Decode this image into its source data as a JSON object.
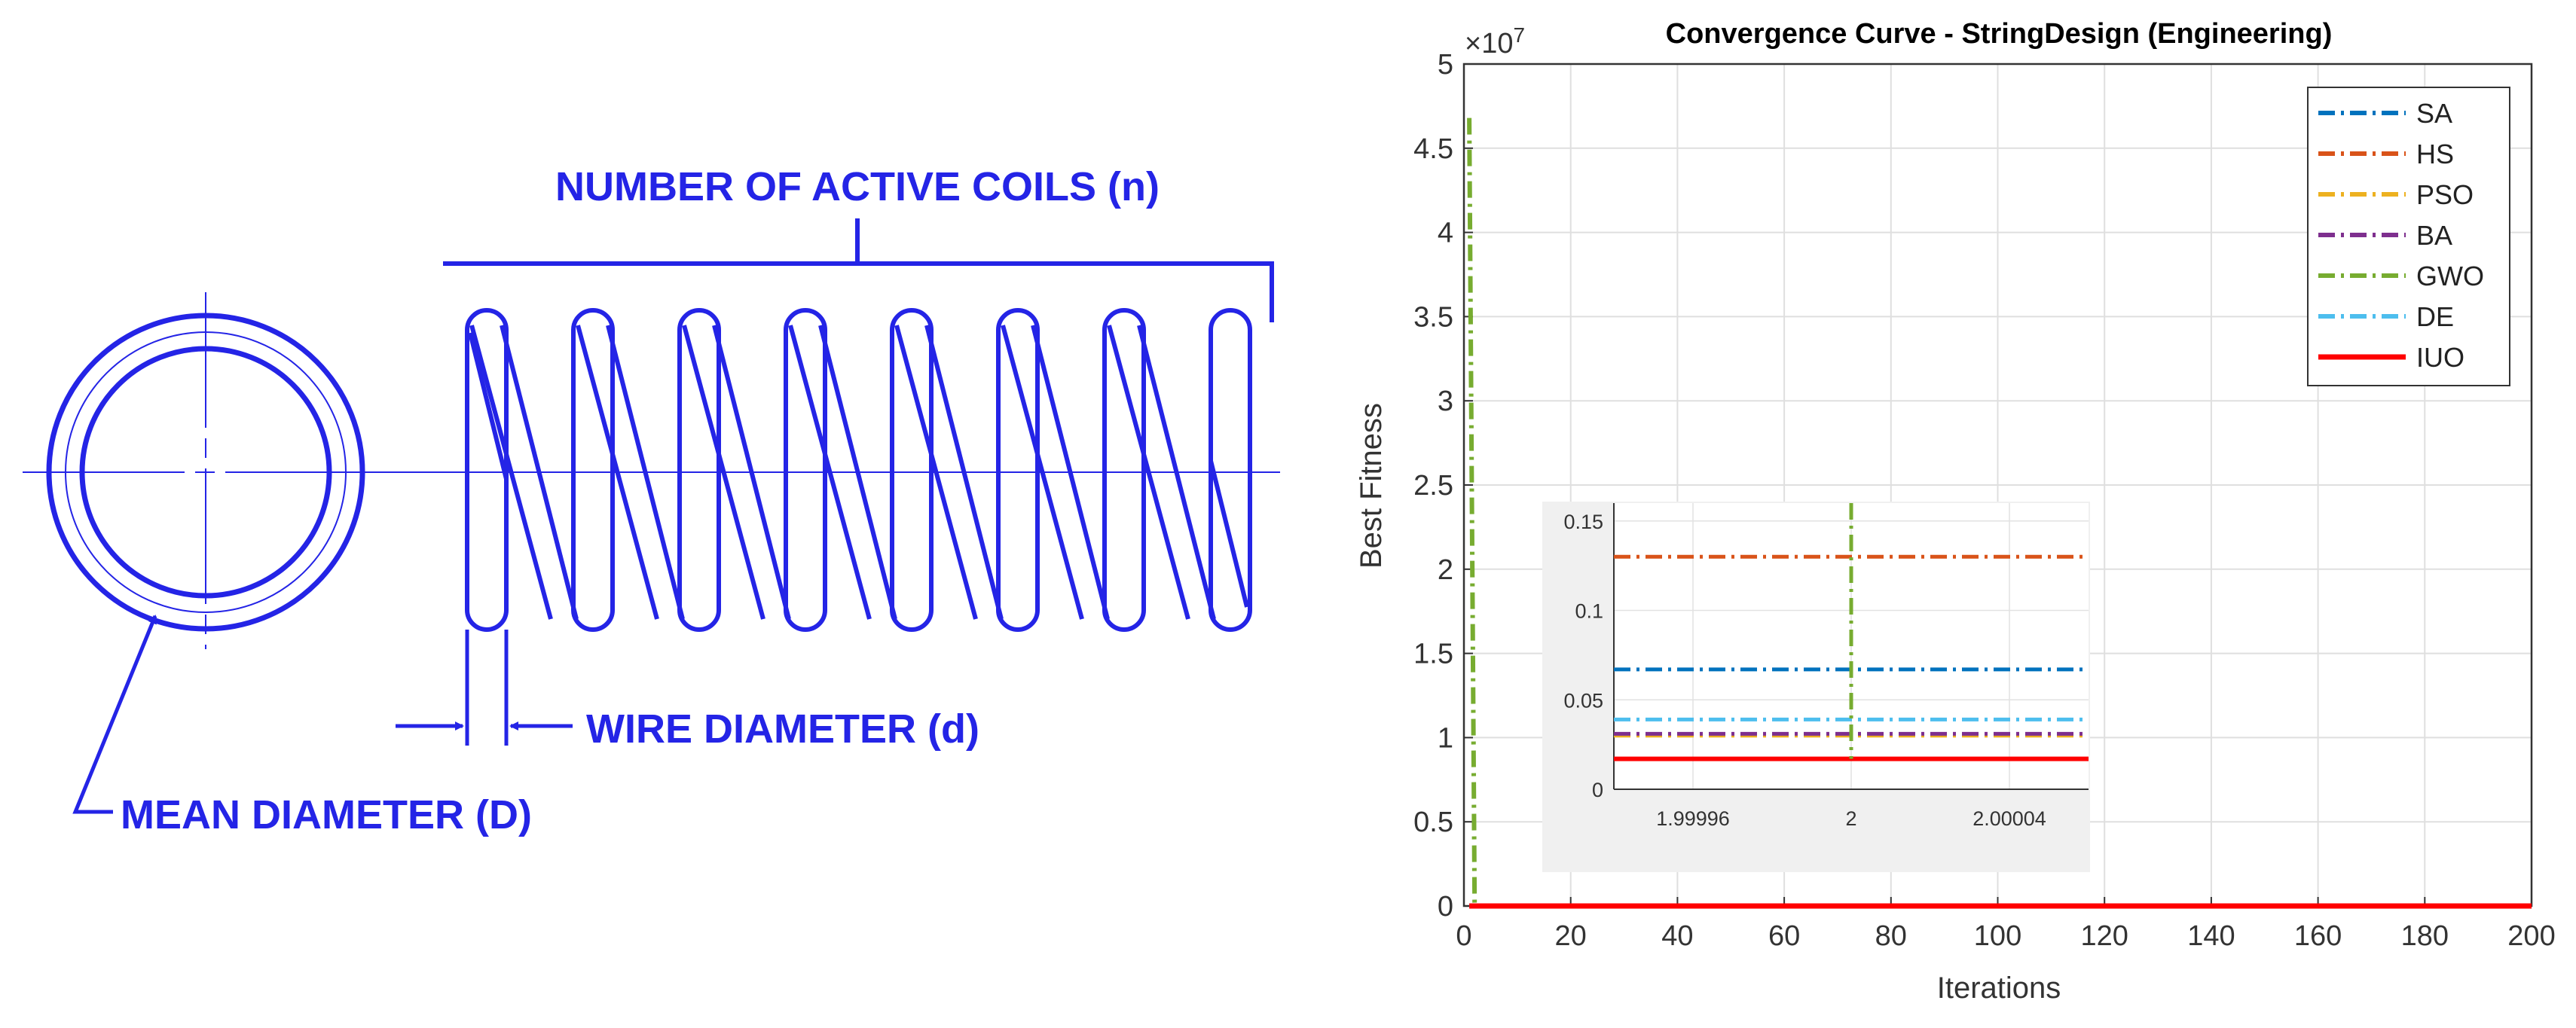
{
  "spring": {
    "label_coils": "NUMBER OF ACTIVE COILS (n)",
    "label_wire": "WIRE DIAMETER (d)",
    "label_mean": "MEAN DIAMETER (D)",
    "line_color": "#2424e6"
  },
  "chart_data": {
    "type": "line",
    "title": "Convergence Curve - StringDesign (Engineering)",
    "xlabel": "Iterations",
    "ylabel": "Best Fitness",
    "y_exponent_label": "×10",
    "y_exponent_power": "7",
    "xlim": [
      0,
      200
    ],
    "ylim": [
      0,
      5
    ],
    "xticks": [
      0,
      20,
      40,
      60,
      80,
      100,
      120,
      140,
      160,
      180,
      200
    ],
    "xtick_labels": [
      "0",
      "20",
      "40",
      "60",
      "80",
      "100",
      "120",
      "140",
      "160",
      "180",
      "200"
    ],
    "yticks": [
      0,
      0.5,
      1,
      1.5,
      2,
      2.5,
      3,
      3.5,
      4,
      4.5,
      5
    ],
    "ytick_labels": [
      "0",
      "0.5",
      "1",
      "1.5",
      "2",
      "2.5",
      "3",
      "3.5",
      "4",
      "4.5",
      "5"
    ],
    "grid": true,
    "legend_position": "top-right",
    "series": [
      {
        "name": "SA",
        "color": "#0072bd",
        "style": "dashdot",
        "points": [
          [
            1,
            6.7e-07
          ],
          [
            200,
            6.7e-07
          ]
        ]
      },
      {
        "name": "HS",
        "color": "#d95319",
        "style": "dashdot",
        "points": [
          [
            1,
            1.3e-06
          ],
          [
            200,
            1.3e-06
          ]
        ]
      },
      {
        "name": "PSO",
        "color": "#edb120",
        "style": "dashdot",
        "points": [
          [
            1,
            3e-07
          ],
          [
            200,
            3e-07
          ]
        ]
      },
      {
        "name": "BA",
        "color": "#7e2f8e",
        "style": "dashdot",
        "points": [
          [
            1,
            3.1e-07
          ],
          [
            200,
            3.1e-07
          ]
        ]
      },
      {
        "name": "GWO",
        "color": "#77ac30",
        "style": "dashdot",
        "points": [
          [
            1,
            4.68
          ],
          [
            2,
            2e-07
          ],
          [
            200,
            2e-07
          ]
        ]
      },
      {
        "name": "DE",
        "color": "#4dbeee",
        "style": "dashdot",
        "points": [
          [
            1,
            3.9e-07
          ],
          [
            200,
            3.9e-07
          ]
        ]
      },
      {
        "name": "IUO",
        "color": "#ff0000",
        "style": "solid",
        "points": [
          [
            1,
            1.7e-07
          ],
          [
            200,
            1.7e-07
          ]
        ]
      }
    ],
    "inset": {
      "xlim": [
        1.99994,
        2.00006
      ],
      "ylim": [
        0,
        0.16
      ],
      "xticks": [
        1.99996,
        2,
        2.00004
      ],
      "xtick_labels": [
        "1.99996",
        "2",
        "2.00004"
      ],
      "yticks": [
        0,
        0.05,
        0.1,
        0.15
      ],
      "ytick_labels": [
        "0",
        "0.05",
        "0.1",
        "0.15"
      ],
      "series_values": [
        {
          "name": "SA",
          "value": 0.067
        },
        {
          "name": "HS",
          "value": 0.13
        },
        {
          "name": "PSO",
          "value": 0.03
        },
        {
          "name": "BA",
          "value": 0.031
        },
        {
          "name": "DE",
          "value": 0.039
        },
        {
          "name": "IUO",
          "value": 0.017
        }
      ],
      "gwo_vertical_x": 2
    }
  }
}
